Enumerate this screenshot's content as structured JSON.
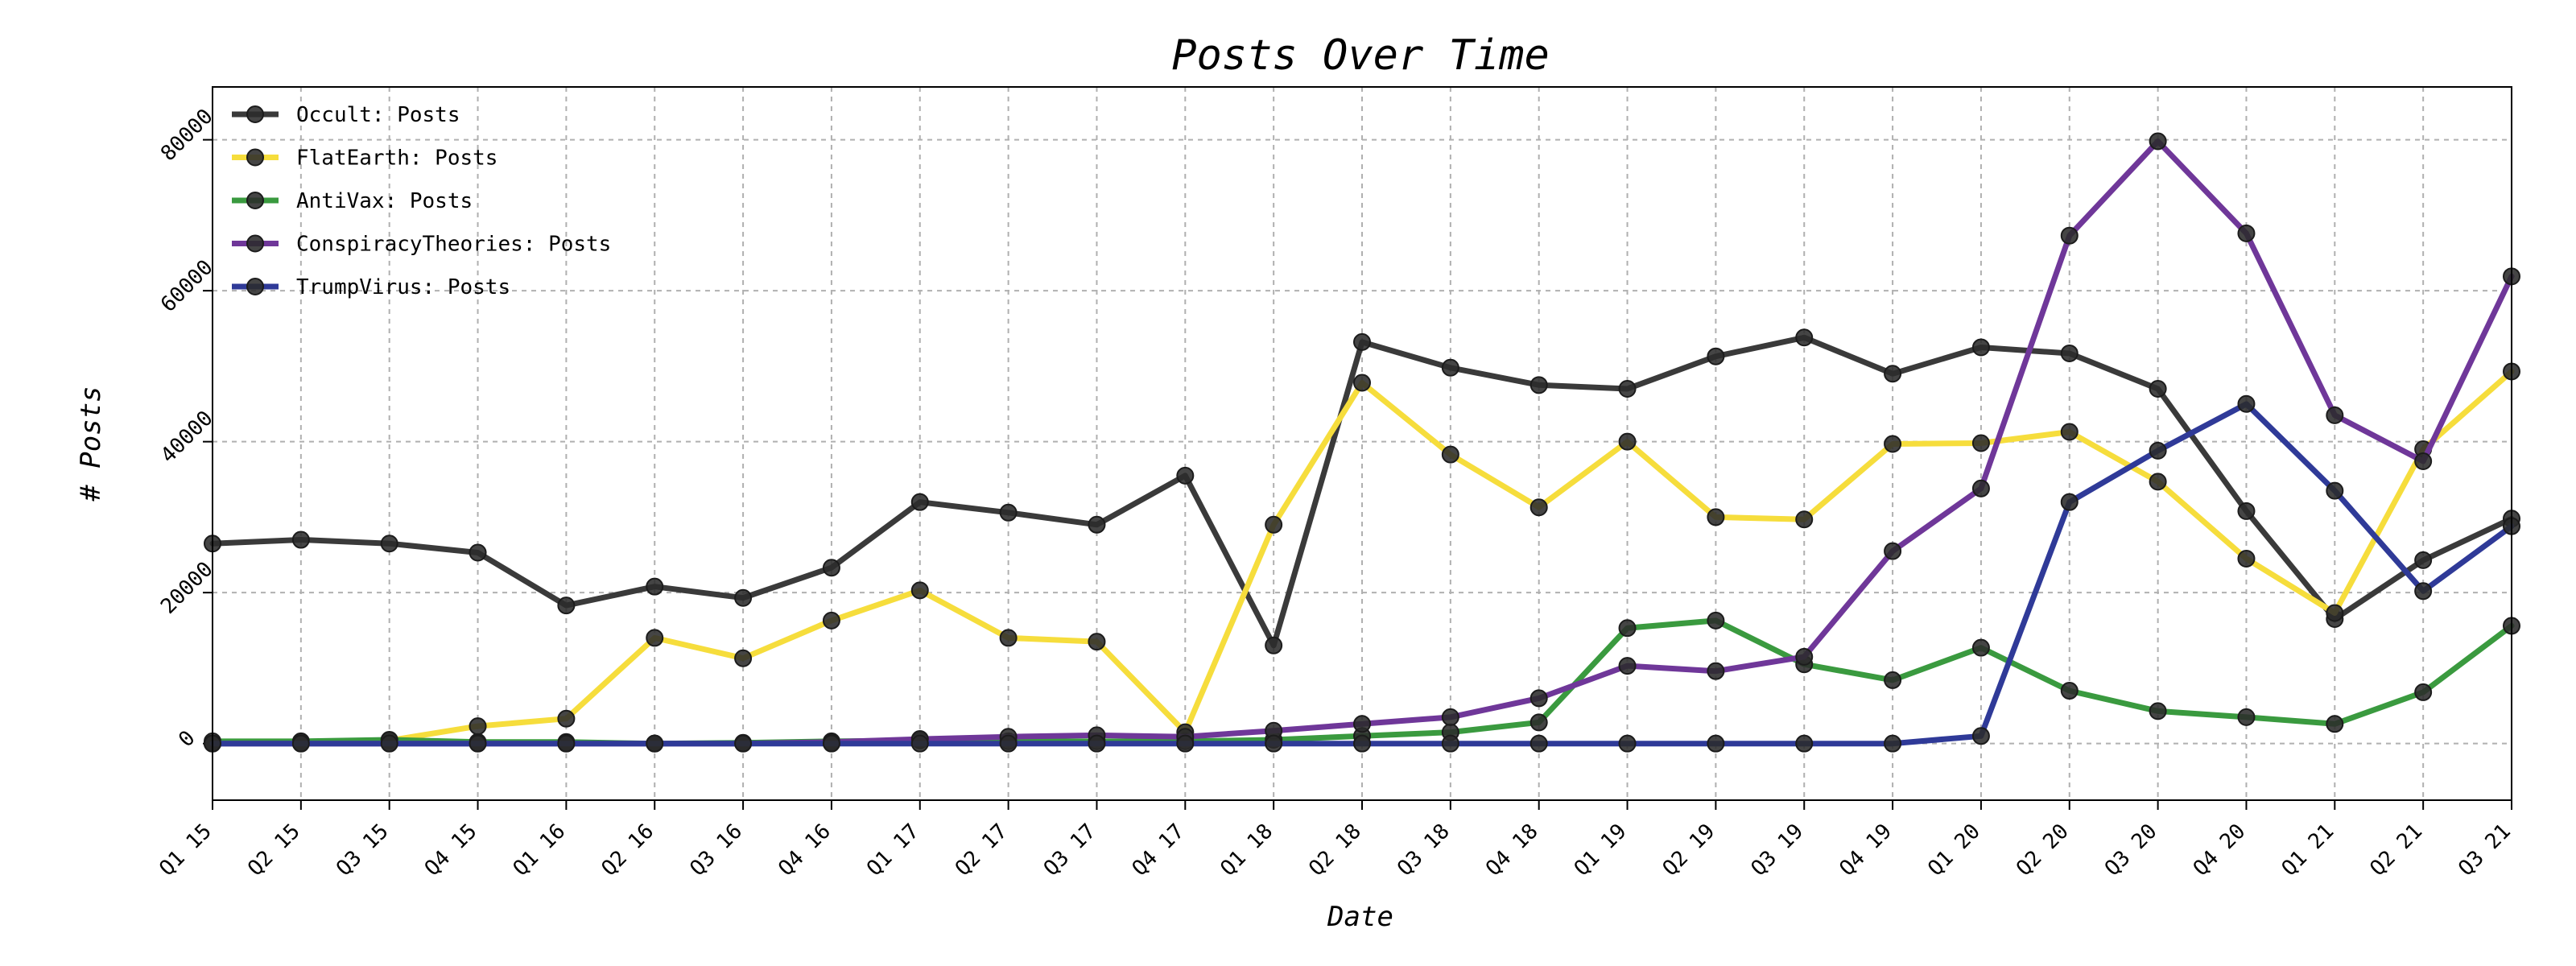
{
  "chart_data": {
    "type": "line",
    "title": "Posts Over Time",
    "xlabel": "Date",
    "ylabel": "# Posts",
    "ylim": [
      -7500,
      87000
    ],
    "yticks": [
      0,
      20000,
      40000,
      60000,
      80000
    ],
    "ytick_labels": [
      "0",
      "20000",
      "40000",
      "60000",
      "80000"
    ],
    "grid": true,
    "legend_position": "top-left",
    "categories": [
      "Q1 15",
      "Q2 15",
      "Q3 15",
      "Q4 15",
      "Q1 16",
      "Q2 16",
      "Q3 16",
      "Q4 16",
      "Q1 17",
      "Q2 17",
      "Q3 17",
      "Q4 17",
      "Q1 18",
      "Q2 18",
      "Q3 18",
      "Q4 18",
      "Q1 19",
      "Q2 19",
      "Q3 19",
      "Q4 19",
      "Q1 20",
      "Q2 20",
      "Q3 20",
      "Q4 20",
      "Q1 21",
      "Q2 21",
      "Q3 21"
    ],
    "series": [
      {
        "name": "Occult: Posts",
        "color": "#3a3a3a",
        "values": [
          26500,
          27000,
          26500,
          25300,
          18300,
          20800,
          19300,
          23300,
          32000,
          30600,
          29000,
          35500,
          13000,
          53200,
          49800,
          47500,
          47000,
          51300,
          53800,
          49000,
          52500,
          51700,
          47000,
          30800,
          16500,
          24300,
          29800
        ]
      },
      {
        "name": "FlatEarth: Posts",
        "color": "#f6dd3c",
        "values": [
          0,
          200,
          400,
          2300,
          3300,
          14000,
          11300,
          16300,
          20300,
          14000,
          13500,
          1500,
          29000,
          47800,
          38300,
          31300,
          40000,
          30000,
          29700,
          39700,
          39800,
          41300,
          34700,
          24500,
          17300,
          39000,
          49300
        ]
      },
      {
        "name": "AntiVax: Posts",
        "color": "#3a9a3f",
        "values": [
          300,
          300,
          500,
          200,
          200,
          0,
          100,
          300,
          400,
          300,
          300,
          300,
          500,
          1000,
          1500,
          2800,
          15300,
          16300,
          10500,
          8400,
          12700,
          7000,
          4300,
          3500,
          2600,
          6800,
          15600
        ]
      },
      {
        "name": "ConspiracyTheories: Posts",
        "color": "#6f3799",
        "values": [
          0,
          0,
          0,
          0,
          0,
          0,
          0,
          200,
          600,
          900,
          1100,
          900,
          1700,
          2600,
          3500,
          6000,
          10300,
          9600,
          11500,
          25500,
          33800,
          67300,
          79800,
          67600,
          43500,
          37400,
          61900
        ]
      },
      {
        "name": "TrumpVirus: Posts",
        "color": "#2f3a98",
        "values": [
          0,
          0,
          0,
          0,
          0,
          0,
          0,
          0,
          0,
          0,
          0,
          0,
          0,
          0,
          0,
          0,
          0,
          0,
          0,
          0,
          1000,
          32000,
          38800,
          45000,
          33500,
          20200,
          28800
        ]
      }
    ]
  }
}
